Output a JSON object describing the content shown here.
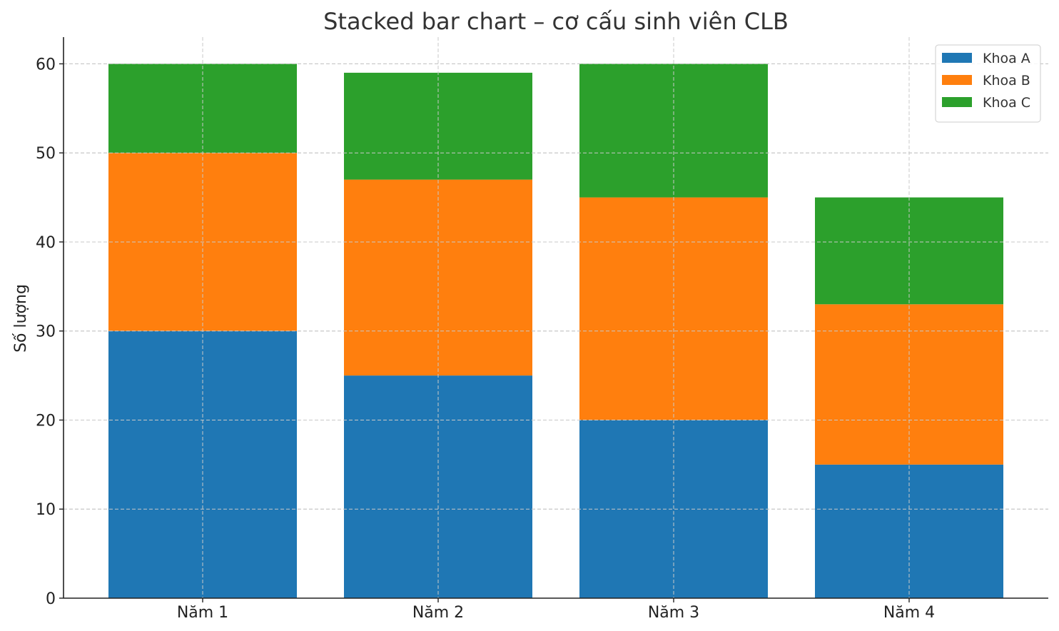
{
  "chart_data": {
    "type": "bar",
    "stacked": true,
    "title": "Stacked bar chart – cơ cấu sinh viên CLB",
    "xlabel": "",
    "ylabel": "Số lượng",
    "categories": [
      "Năm 1",
      "Năm 2",
      "Năm 3",
      "Năm 4"
    ],
    "series": [
      {
        "name": "Khoa A",
        "values": [
          30,
          25,
          20,
          15
        ],
        "color": "#1f77b4"
      },
      {
        "name": "Khoa B",
        "values": [
          20,
          22,
          25,
          18
        ],
        "color": "#ff7f0e"
      },
      {
        "name": "Khoa C",
        "values": [
          10,
          12,
          15,
          12
        ],
        "color": "#2ca02c"
      }
    ],
    "ylim": [
      0,
      63
    ],
    "yticks": [
      0,
      10,
      20,
      30,
      40,
      50,
      60
    ],
    "grid": true,
    "legend_position": "top-right"
  }
}
